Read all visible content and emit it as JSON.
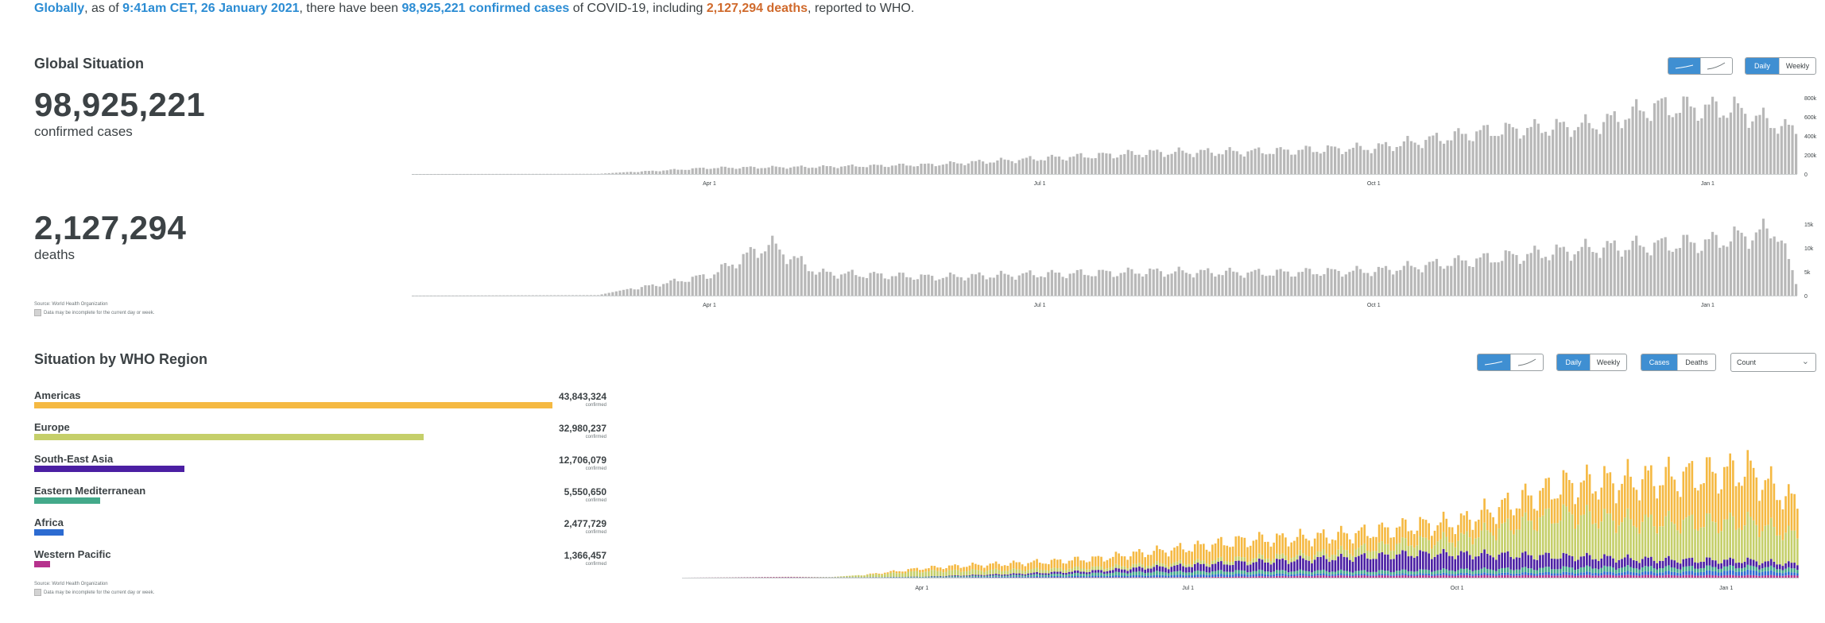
{
  "headline": {
    "scope": "Globally",
    "as_of_prefix": ", as of ",
    "timestamp": "9:41am CET, 26 January 2021",
    "mid1": ", there have been ",
    "cases_text": "98,925,221 confirmed cases",
    "mid2": " of COVID-19, including ",
    "deaths_text": "2,127,294 deaths",
    "suffix": ", reported to WHO."
  },
  "global": {
    "title": "Global Situation",
    "cases_value": "98,925,221",
    "cases_label": "confirmed cases",
    "deaths_value": "2,127,294",
    "deaths_label": "deaths",
    "source": "Source: World Health Organization",
    "note": "Data may be incomplete for the current day or week.",
    "toggle_scale": [
      "linear-icon",
      "log-icon"
    ],
    "toggle_period": [
      "Daily",
      "Weekly"
    ]
  },
  "regions": {
    "title": "Situation by WHO Region",
    "toggle_period": [
      "Daily",
      "Weekly"
    ],
    "toggle_metric": [
      "Cases",
      "Deaths"
    ],
    "select_value": "Count",
    "source": "Source: World Health Organization",
    "note": "Data may be incomplete for the current day or week.",
    "items": [
      {
        "name": "Americas",
        "value": "43,843,324",
        "unit": "confirmed",
        "fraction": 1.0,
        "color": "#f5b942"
      },
      {
        "name": "Europe",
        "value": "32,980,237",
        "unit": "confirmed",
        "fraction": 0.752,
        "color": "#c5cf6a"
      },
      {
        "name": "South-East Asia",
        "value": "12,706,079",
        "unit": "confirmed",
        "fraction": 0.29,
        "color": "#4b1fa3"
      },
      {
        "name": "Eastern Mediterranean",
        "value": "5,550,650",
        "unit": "confirmed",
        "fraction": 0.127,
        "color": "#43a98a"
      },
      {
        "name": "Africa",
        "value": "2,477,729",
        "unit": "confirmed",
        "fraction": 0.057,
        "color": "#2c6bd1"
      },
      {
        "name": "Western Pacific",
        "value": "1,366,457",
        "unit": "confirmed",
        "fraction": 0.031,
        "color": "#b6328d"
      }
    ]
  },
  "chart_data": [
    {
      "type": "bar",
      "title": "",
      "x_axis_ticks": [
        "Apr 1",
        "Jul 1",
        "Oct 1",
        "Jan 1"
      ],
      "y_axis_ticks": [
        "0",
        "200k",
        "400k",
        "600k",
        "800k"
      ],
      "ylim": [
        0,
        850000
      ],
      "series": [
        {
          "values": []
        }
      ],
      "daily_approx": [
        {
          "date": "2020-01-10",
          "value": 0
        },
        {
          "date": "2020-03-01",
          "value": 2000
        },
        {
          "date": "2020-04-01",
          "value": 75000
        },
        {
          "date": "2020-05-01",
          "value": 88000
        },
        {
          "date": "2020-06-01",
          "value": 115000
        },
        {
          "date": "2020-07-01",
          "value": 190000
        },
        {
          "date": "2020-08-01",
          "value": 260000
        },
        {
          "date": "2020-09-01",
          "value": 275000
        },
        {
          "date": "2020-10-01",
          "value": 320000
        },
        {
          "date": "2020-11-01",
          "value": 520000
        },
        {
          "date": "2020-12-01",
          "value": 600000
        },
        {
          "date": "2020-12-17",
          "value": 820000
        },
        {
          "date": "2021-01-08",
          "value": 790000
        },
        {
          "date": "2021-01-25",
          "value": 520000
        }
      ]
    },
    {
      "type": "bar",
      "title": "",
      "x_axis_ticks": [
        "Apr 1",
        "Jul 1",
        "Oct 1",
        "Jan 1"
      ],
      "y_axis_ticks": [
        "0",
        "5k",
        "10k",
        "15k"
      ],
      "ylim": [
        0,
        16000
      ],
      "daily_approx": [
        {
          "date": "2020-01-10",
          "value": 0
        },
        {
          "date": "2020-03-01",
          "value": 100
        },
        {
          "date": "2020-04-01",
          "value": 5000
        },
        {
          "date": "2020-04-17",
          "value": 12500
        },
        {
          "date": "2020-05-01",
          "value": 5500
        },
        {
          "date": "2020-06-01",
          "value": 4500
        },
        {
          "date": "2020-07-01",
          "value": 5200
        },
        {
          "date": "2020-08-01",
          "value": 5800
        },
        {
          "date": "2020-09-01",
          "value": 5500
        },
        {
          "date": "2020-10-01",
          "value": 6000
        },
        {
          "date": "2020-11-01",
          "value": 9000
        },
        {
          "date": "2020-12-01",
          "value": 11500
        },
        {
          "date": "2021-01-01",
          "value": 13000
        },
        {
          "date": "2021-01-20",
          "value": 16000
        },
        {
          "date": "2021-01-25",
          "value": 3000
        }
      ]
    },
    {
      "type": "bar",
      "stacked": true,
      "title": "",
      "x_axis_ticks": [
        "Apr 1",
        "Jul 1",
        "Oct 1",
        "Jan 1"
      ],
      "series_names": [
        "Americas",
        "Europe",
        "South-East Asia",
        "Eastern Mediterranean",
        "Africa",
        "Western Pacific"
      ],
      "colors": [
        "#f5b942",
        "#c5cf6a",
        "#4b1fa3",
        "#43a98a",
        "#2c6bd1",
        "#b6328d"
      ]
    }
  ]
}
